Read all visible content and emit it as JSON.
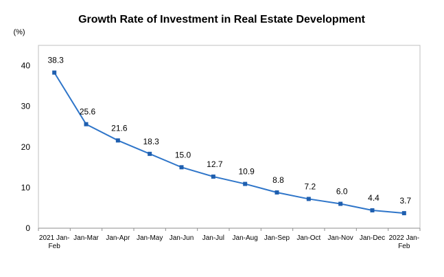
{
  "chart_data": {
    "type": "line",
    "title": "Growth Rate of Investment in Real Estate Development",
    "unit": "(%)",
    "categories": [
      [
        "2021 Jan-",
        "Feb"
      ],
      [
        "Jan-Mar"
      ],
      [
        "Jan-Apr"
      ],
      [
        "Jan-May"
      ],
      [
        "Jan-Jun"
      ],
      [
        "Jan-Jul"
      ],
      [
        "Jan-Aug"
      ],
      [
        "Jan-Sep"
      ],
      [
        "Jan-Oct"
      ],
      [
        "Jan-Nov"
      ],
      [
        "Jan-Dec"
      ],
      [
        "2022 Jan-",
        "Feb"
      ]
    ],
    "values": [
      38.3,
      25.6,
      21.6,
      18.3,
      15.0,
      12.7,
      10.9,
      8.8,
      7.2,
      6.0,
      4.4,
      3.7
    ],
    "value_labels": [
      "38.3",
      "25.6",
      "21.6",
      "18.3",
      "15.0",
      "12.7",
      "10.9",
      "8.8",
      "7.2",
      "6.0",
      "4.4",
      "3.7"
    ],
    "ylim": [
      0,
      45
    ],
    "yticks": [
      0,
      10,
      20,
      30,
      40
    ],
    "grid": false,
    "legend": "none",
    "line_color": "#2E75C9",
    "marker_color": "#1F5FAF"
  }
}
